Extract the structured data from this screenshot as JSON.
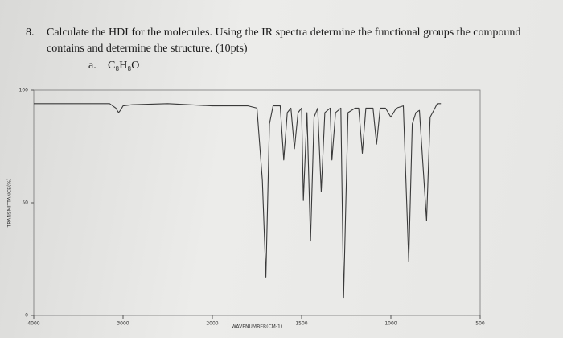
{
  "question": {
    "number": "8.",
    "lines": [
      "Calculate the HDI for the molecules. Using the IR spectra determine the functional groups the compound",
      "contains and determine the structure. (10pts)"
    ],
    "part": "a.",
    "formula": "C₈H₈O"
  },
  "chart_data": {
    "type": "line",
    "xlabel": "WAVENUMBER(CM-1)",
    "ylabel": "TRANSMITTANCE(%)",
    "color": "#3a3a3a",
    "x": [
      4000,
      3500,
      3150,
      3080,
      3050,
      3030,
      3000,
      2900,
      2500,
      2000,
      1800,
      1750,
      1720,
      1700,
      1680,
      1660,
      1620,
      1600,
      1580,
      1560,
      1540,
      1520,
      1500,
      1490,
      1470,
      1450,
      1430,
      1410,
      1390,
      1370,
      1340,
      1330,
      1310,
      1280,
      1265,
      1240,
      1200,
      1180,
      1160,
      1140,
      1100,
      1080,
      1060,
      1030,
      1000,
      970,
      930,
      900,
      880,
      860,
      840,
      800,
      780,
      760,
      740,
      720
    ],
    "values": [
      94,
      94,
      94,
      92,
      90,
      91,
      93,
      93.5,
      94,
      93,
      93,
      92,
      60,
      17,
      85,
      93,
      93,
      69,
      90,
      92,
      74,
      90,
      92,
      51,
      90,
      33,
      88,
      92,
      55,
      90,
      92,
      69,
      90,
      92,
      8,
      90,
      92,
      92,
      72,
      92,
      92,
      76,
      92,
      92,
      88,
      92,
      93,
      24,
      85,
      90,
      91,
      42,
      88,
      91,
      94,
      94
    ],
    "xlim": [
      4000,
      500
    ],
    "ylim": [
      0,
      100
    ],
    "xticks": [
      4000,
      3000,
      2000,
      1500,
      1000,
      500
    ],
    "yticks": [
      0,
      50,
      100
    ]
  }
}
